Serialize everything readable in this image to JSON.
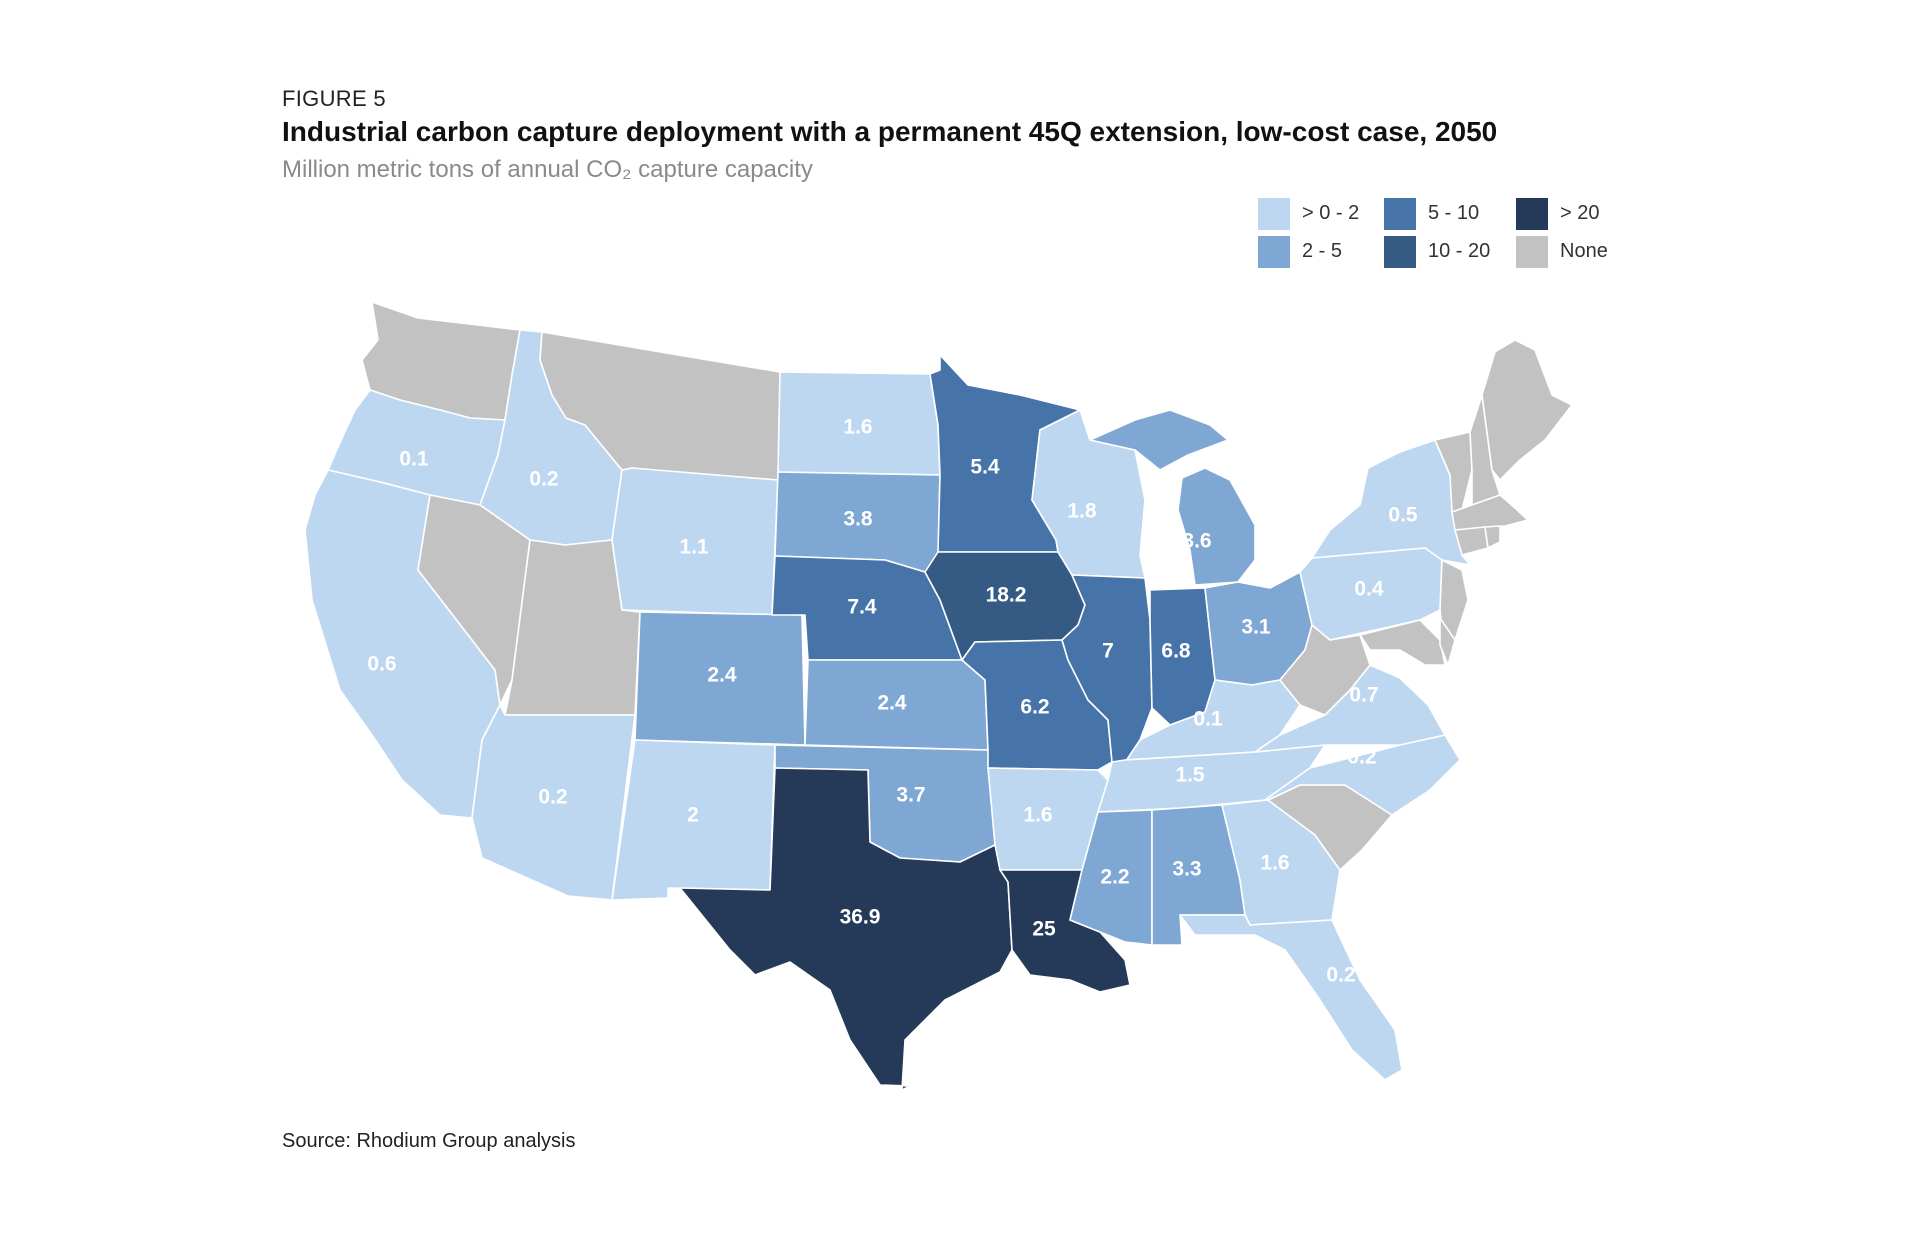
{
  "figure_label": "FIGURE 5",
  "title": "Industrial carbon capture deployment with a permanent 45Q extension, low-cost case, 2050",
  "subtitle": "Million metric tons of annual CO₂ capture capacity",
  "source": "Source: Rhodium Group analysis",
  "colors": {
    "gt0_2": "#bdd7f0",
    "r2_5": "#7fa7d4",
    "r5_10": "#4673a8",
    "r10_20": "#355a84",
    "gt20": "#253a58",
    "none": "#c2c2c2"
  },
  "legend": [
    {
      "label": "> 0 - 2",
      "color_key": "gt0_2"
    },
    {
      "label": "2 - 5",
      "color_key": "r2_5"
    },
    {
      "label": "5 - 10",
      "color_key": "r5_10"
    },
    {
      "label": "10 - 20",
      "color_key": "r10_20"
    },
    {
      "label": "> 20",
      "color_key": "gt20"
    },
    {
      "label": "None",
      "color_key": "none"
    }
  ],
  "chart_data": {
    "type": "choropleth",
    "states": [
      {
        "state": "Washington",
        "value": null
      },
      {
        "state": "Oregon",
        "value": 0.1
      },
      {
        "state": "California",
        "value": 0.6
      },
      {
        "state": "Idaho",
        "value": 0.2
      },
      {
        "state": "Nevada",
        "value": null
      },
      {
        "state": "Utah",
        "value": null
      },
      {
        "state": "Arizona",
        "value": 0.2
      },
      {
        "state": "Montana",
        "value": null
      },
      {
        "state": "Wyoming",
        "value": 1.1
      },
      {
        "state": "Colorado",
        "value": 2.4
      },
      {
        "state": "New Mexico",
        "value": 2
      },
      {
        "state": "North Dakota",
        "value": 1.6
      },
      {
        "state": "South Dakota",
        "value": 3.8
      },
      {
        "state": "Nebraska",
        "value": 7.4
      },
      {
        "state": "Kansas",
        "value": 2.4
      },
      {
        "state": "Oklahoma",
        "value": 3.7
      },
      {
        "state": "Texas",
        "value": 36.9
      },
      {
        "state": "Minnesota",
        "value": 5.4
      },
      {
        "state": "Iowa",
        "value": 18.2
      },
      {
        "state": "Missouri",
        "value": 6.2
      },
      {
        "state": "Arkansas",
        "value": 1.6
      },
      {
        "state": "Louisiana",
        "value": 25
      },
      {
        "state": "Wisconsin",
        "value": 1.8
      },
      {
        "state": "Illinois",
        "value": 7
      },
      {
        "state": "Michigan",
        "value": 3.6
      },
      {
        "state": "Indiana",
        "value": 6.8
      },
      {
        "state": "Ohio",
        "value": 3.1
      },
      {
        "state": "Kentucky",
        "value": 0.1
      },
      {
        "state": "Tennessee",
        "value": 1.5
      },
      {
        "state": "Mississippi",
        "value": 2.2
      },
      {
        "state": "Alabama",
        "value": 3.3
      },
      {
        "state": "Georgia",
        "value": 1.6
      },
      {
        "state": "Florida",
        "value": 0.2
      },
      {
        "state": "South Carolina",
        "value": null
      },
      {
        "state": "North Carolina",
        "value": 0.2
      },
      {
        "state": "Virginia",
        "value": 0.7
      },
      {
        "state": "West Virginia",
        "value": null
      },
      {
        "state": "Pennsylvania",
        "value": 0.4
      },
      {
        "state": "New York",
        "value": 0.5
      },
      {
        "state": "New Jersey",
        "value": null
      },
      {
        "state": "Maryland",
        "value": null
      },
      {
        "state": "Delaware",
        "value": null
      },
      {
        "state": "Vermont",
        "value": null
      },
      {
        "state": "New Hampshire",
        "value": null
      },
      {
        "state": "Maine",
        "value": null
      },
      {
        "state": "Massachusetts",
        "value": null
      },
      {
        "state": "Connecticut",
        "value": null
      },
      {
        "state": "Rhode Island",
        "value": null
      }
    ]
  }
}
